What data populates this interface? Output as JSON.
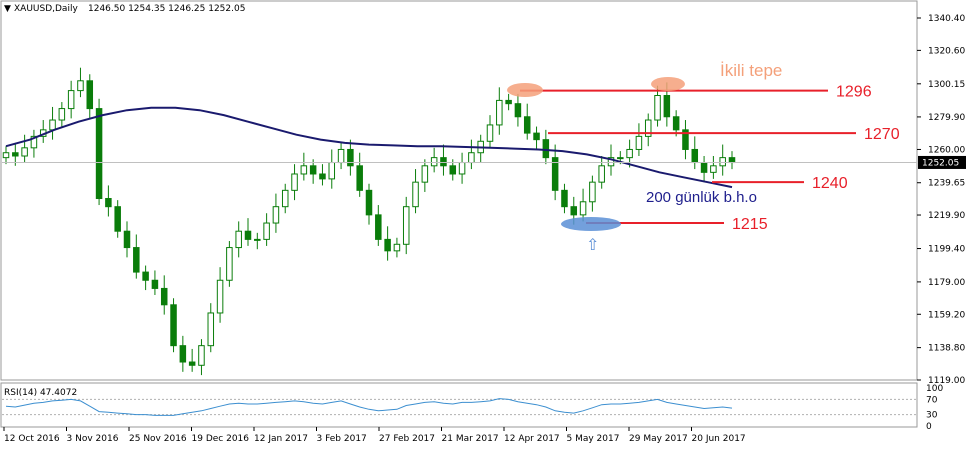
{
  "header": {
    "symbol": "XAUUSD,Daily",
    "ohlc": "1246.50 1254.35 1246.25 1252.05"
  },
  "colors": {
    "candle": "#0a7d0a",
    "ma": "#1a1a6e",
    "level_line": "#e8202a",
    "rsi_line": "#3c8fd0",
    "current_price_bg": "#000000",
    "highlight_top": "#f4a07a",
    "highlight_bottom": "#5b8fd6"
  },
  "chart_data": [
    {
      "type": "candlestick",
      "y_ticks": [
        "1340.40",
        "1320.60",
        "1300.15",
        "1279.90",
        "1260.00",
        "1239.65",
        "1219.90",
        "1199.40",
        "1179.00",
        "1159.20",
        "1138.80",
        "1119.00"
      ],
      "ylim": [
        1119.0,
        1340.4
      ],
      "x_ticks": [
        "12 Oct 2016",
        "3 Nov 2016",
        "25 Nov 2016",
        "19 Dec 2016",
        "12 Jan 2017",
        "3 Feb 2017",
        "27 Feb 2017",
        "21 Mar 2017",
        "12 Apr 2017",
        "5 May 2017",
        "29 May 2017",
        "20 Jun 2017"
      ],
      "current_price": {
        "label": "1252.05",
        "value": 1252.05
      },
      "ma_label": "200 günlük b.h.o",
      "ma": [
        1262,
        1266,
        1272,
        1277,
        1281,
        1284,
        1285.5,
        1285.5,
        1284,
        1281,
        1277,
        1273,
        1269,
        1266,
        1264,
        1263,
        1262.5,
        1262,
        1262,
        1261.5,
        1261,
        1260.5,
        1260,
        1259,
        1257,
        1254,
        1250,
        1246,
        1243,
        1240,
        1237
      ],
      "close": [
        1258,
        1256,
        1261,
        1268,
        1272,
        1278,
        1285,
        1296,
        1302,
        1285,
        1230,
        1225,
        1210,
        1200,
        1185,
        1180,
        1175,
        1165,
        1140,
        1130,
        1128,
        1140,
        1160,
        1180,
        1200,
        1210,
        1205,
        1205,
        1215,
        1225,
        1235,
        1245,
        1250,
        1245,
        1242,
        1252,
        1260,
        1250,
        1235,
        1220,
        1205,
        1198,
        1202,
        1225,
        1240,
        1250,
        1255,
        1250,
        1245,
        1252,
        1258,
        1265,
        1275,
        1290,
        1288,
        1280,
        1270,
        1266,
        1255,
        1235,
        1225,
        1220,
        1228,
        1240,
        1250,
        1255,
        1255,
        1260,
        1268,
        1278,
        1293,
        1280,
        1272,
        1260,
        1252,
        1246,
        1250,
        1255,
        1252
      ],
      "levels": [
        {
          "label": "1296",
          "value": 1296
        },
        {
          "label": "1270",
          "value": 1270
        },
        {
          "label": "1240",
          "value": 1240
        },
        {
          "label": "1215",
          "value": 1215
        }
      ],
      "annotation": "İkili tepe"
    },
    {
      "type": "line",
      "title": "RSI(14) 47.4072",
      "y_ticks": [
        "100",
        "70",
        "30",
        "0"
      ],
      "ylim": [
        0,
        100
      ],
      "values": [
        52,
        50,
        55,
        60,
        62,
        66,
        68,
        70,
        66,
        52,
        38,
        36,
        34,
        32,
        30,
        30,
        28,
        28,
        28,
        32,
        36,
        40,
        46,
        52,
        58,
        60,
        58,
        58,
        60,
        62,
        64,
        66,
        64,
        60,
        58,
        62,
        66,
        58,
        50,
        44,
        40,
        42,
        44,
        54,
        58,
        62,
        64,
        60,
        58,
        62,
        62,
        64,
        66,
        72,
        70,
        64,
        60,
        56,
        50,
        40,
        36,
        34,
        40,
        48,
        56,
        58,
        58,
        60,
        62,
        66,
        70,
        62,
        58,
        54,
        50,
        46,
        48,
        50,
        47
      ]
    }
  ]
}
